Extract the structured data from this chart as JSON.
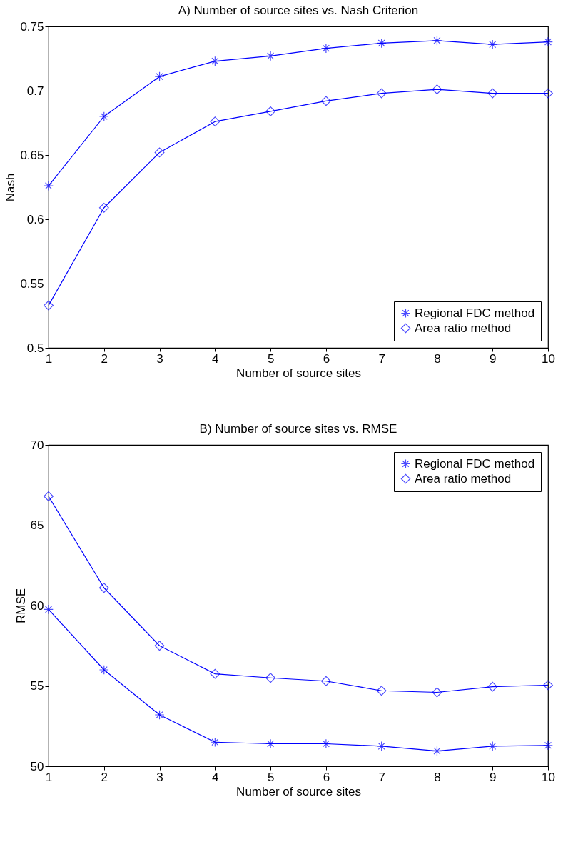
{
  "chart_data": [
    {
      "type": "line",
      "title": "A) Number of source sites vs. Nash Criterion",
      "xlabel": "Number of source sites",
      "ylabel": "Nash",
      "x": [
        1,
        2,
        3,
        4,
        5,
        6,
        7,
        8,
        9,
        10
      ],
      "xlim": [
        1,
        10
      ],
      "xticks": [
        1,
        2,
        3,
        4,
        5,
        6,
        7,
        8,
        9,
        10
      ],
      "ylim": [
        0.5,
        0.75
      ],
      "yticks": [
        0.5,
        0.55,
        0.6,
        0.65,
        0.7,
        0.75
      ],
      "grid": false,
      "legend": "bottom right",
      "line_style": "solid",
      "series": [
        {
          "name": "Regional FDC method",
          "color": "#0000ff",
          "marker": "cross",
          "values": [
            0.626,
            0.68,
            0.711,
            0.723,
            0.727,
            0.733,
            0.737,
            0.739,
            0.736,
            0.738
          ]
        },
        {
          "name": "Area ratio method",
          "color": "#0000ff",
          "marker": "diamond",
          "values": [
            0.533,
            0.609,
            0.652,
            0.676,
            0.684,
            0.692,
            0.698,
            0.701,
            0.698,
            0.698
          ]
        }
      ]
    },
    {
      "type": "line",
      "title": "B) Number of source sites vs. RMSE",
      "xlabel": "Number of source sites",
      "ylabel": "RMSE",
      "x": [
        1,
        2,
        3,
        4,
        5,
        6,
        7,
        8,
        9,
        10
      ],
      "xlim": [
        1,
        10
      ],
      "xticks": [
        1,
        2,
        3,
        4,
        5,
        6,
        7,
        8,
        9,
        10
      ],
      "ylim": [
        50,
        70
      ],
      "yticks": [
        50,
        55,
        60,
        65,
        70
      ],
      "grid": false,
      "legend": "top right",
      "line_style": "solid",
      "series": [
        {
          "name": "Regional FDC method",
          "color": "#0000ff",
          "marker": "cross",
          "values": [
            59.76,
            56.0,
            53.2,
            51.5,
            51.4,
            51.4,
            51.25,
            50.95,
            51.25,
            51.3
          ]
        },
        {
          "name": "Area ratio method",
          "color": "#0000ff",
          "marker": "diamond",
          "values": [
            66.8,
            61.1,
            57.5,
            55.75,
            55.5,
            55.3,
            54.7,
            54.6,
            54.95,
            55.05
          ]
        }
      ]
    }
  ]
}
